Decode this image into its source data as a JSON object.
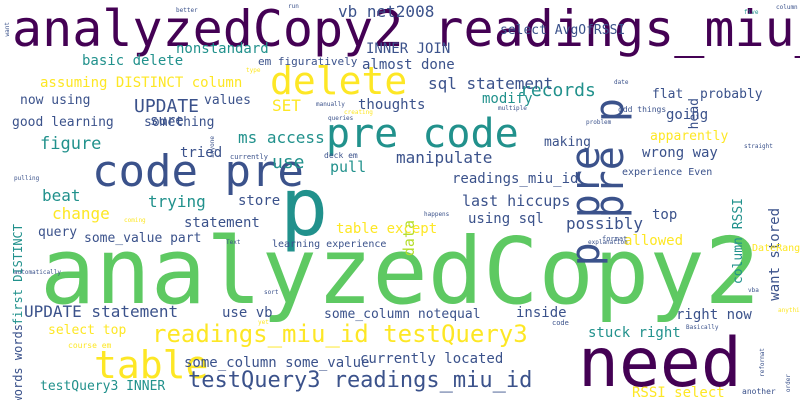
{
  "palette": {
    "dark_purple": "#440154",
    "indigo": "#3b528b",
    "teal": "#21918c",
    "green": "#5ec962",
    "yellow": "#fde725",
    "lime": "#b5de2b"
  },
  "words": [
    {
      "text": "analyzedCopy2 readings_miu_id",
      "color": "#440154"
    },
    {
      "text": "analyzedCopy2",
      "color": "#5ec962"
    },
    {
      "text": "need",
      "color": "#440154"
    },
    {
      "text": "p",
      "color": "#21918c"
    },
    {
      "text": "code pre",
      "color": "#3b528b"
    },
    {
      "text": "pre code",
      "color": "#21918c"
    },
    {
      "text": "pre p",
      "color": "#3b528b"
    },
    {
      "text": "delete",
      "color": "#fde725"
    },
    {
      "text": "table",
      "color": "#fde725"
    },
    {
      "text": "readings_miu_id testQuery3",
      "color": "#fde725"
    },
    {
      "text": "testQuery3 readings_miu_id",
      "color": "#3b528b"
    },
    {
      "text": "p pre",
      "color": "#3b528b"
    },
    {
      "text": "records",
      "color": "#21918c"
    },
    {
      "text": "sql statement",
      "color": "#3b528b"
    },
    {
      "text": "UPDATE",
      "color": "#3b528b"
    },
    {
      "text": "UPDATE statement",
      "color": "#3b528b"
    },
    {
      "text": "figure",
      "color": "#21918c"
    },
    {
      "text": "ms access",
      "color": "#21918c"
    },
    {
      "text": "manipulate",
      "color": "#3b528b"
    },
    {
      "text": "readings_miu_id",
      "color": "#3b528b"
    },
    {
      "text": "trying",
      "color": "#21918c"
    },
    {
      "text": "beat",
      "color": "#21918c"
    },
    {
      "text": "store",
      "color": "#3b528b"
    },
    {
      "text": "table except",
      "color": "#fde725"
    },
    {
      "text": "wrong way",
      "color": "#3b528b"
    },
    {
      "text": "use",
      "color": "#21918c"
    },
    {
      "text": "pull",
      "color": "#21918c"
    },
    {
      "text": "data",
      "color": "#b5de2b"
    },
    {
      "text": "last hiccups",
      "color": "#3b528b"
    },
    {
      "text": "using sql",
      "color": "#3b528b"
    },
    {
      "text": "possibly",
      "color": "#3b528b"
    },
    {
      "text": "top",
      "color": "#3b528b"
    },
    {
      "text": "change",
      "color": "#fde725"
    },
    {
      "text": "sure",
      "color": "#3b528b"
    },
    {
      "text": "basic delete",
      "color": "#21918c"
    },
    {
      "text": "nonstandard",
      "color": "#21918c"
    },
    {
      "text": "INNER JOIN",
      "color": "#3b528b"
    },
    {
      "text": "select AvgOfRSSI",
      "color": "#3b528b"
    },
    {
      "text": "vb net2008",
      "color": "#3b528b"
    },
    {
      "text": "em figuratively",
      "color": "#3b528b"
    },
    {
      "text": "almost done",
      "color": "#3b528b"
    },
    {
      "text": "assuming DISTINCT column",
      "color": "#fde725"
    },
    {
      "text": "now using",
      "color": "#3b528b"
    },
    {
      "text": "values",
      "color": "#3b528b"
    },
    {
      "text": "SET",
      "color": "#fde725"
    },
    {
      "text": "thoughts",
      "color": "#3b528b"
    },
    {
      "text": "modify",
      "color": "#21918c"
    },
    {
      "text": "good learning",
      "color": "#3b528b"
    },
    {
      "text": "something",
      "color": "#3b528b"
    },
    {
      "text": "making",
      "color": "#3b528b"
    },
    {
      "text": "apparently",
      "color": "#fde725"
    },
    {
      "text": "going",
      "color": "#3b528b"
    },
    {
      "text": "probably",
      "color": "#3b528b"
    },
    {
      "text": "flat",
      "color": "#3b528b"
    },
    {
      "text": "head",
      "color": "#3b528b"
    },
    {
      "text": "tried",
      "color": "#3b528b"
    },
    {
      "text": "statement",
      "color": "#3b528b"
    },
    {
      "text": "query",
      "color": "#3b528b"
    },
    {
      "text": "some_value part",
      "color": "#3b528b"
    },
    {
      "text": "allowed",
      "color": "#fde725"
    },
    {
      "text": "select top",
      "color": "#fde725"
    },
    {
      "text": "use vb",
      "color": "#3b528b"
    },
    {
      "text": "some_column notequal",
      "color": "#3b528b"
    },
    {
      "text": "inside",
      "color": "#3b528b"
    },
    {
      "text": "right now",
      "color": "#3b528b"
    },
    {
      "text": "stuck right",
      "color": "#21918c"
    },
    {
      "text": "some_column some_value",
      "color": "#3b528b"
    },
    {
      "text": "currently located",
      "color": "#3b528b"
    },
    {
      "text": "testQuery3 INNER",
      "color": "#21918c"
    },
    {
      "text": "RSSI select",
      "color": "#fde725"
    },
    {
      "text": "first DISTINCT",
      "color": "#21918c"
    },
    {
      "text": "words words",
      "color": "#3b528b"
    },
    {
      "text": "column RSSI",
      "color": "#21918c"
    },
    {
      "text": "want stored",
      "color": "#3b528b"
    },
    {
      "text": "experience Even",
      "color": "#3b528b"
    },
    {
      "text": "learning experience",
      "color": "#3b528b"
    },
    {
      "text": "DateRange",
      "color": "#fde725"
    },
    {
      "text": "deck em",
      "color": "#3b528b"
    },
    {
      "text": "currently",
      "color": "#3b528b"
    },
    {
      "text": "course em",
      "color": "#fde725"
    },
    {
      "text": "code",
      "color": "#3b528b"
    },
    {
      "text": "another",
      "color": "#3b528b"
    },
    {
      "text": "odd things",
      "color": "#3b528b"
    },
    {
      "text": "format",
      "color": "#3b528b"
    },
    {
      "text": "Text",
      "color": "#3b528b"
    },
    {
      "text": "vba",
      "color": "#3b528b"
    },
    {
      "text": "explanation",
      "color": "#3b528b"
    },
    {
      "text": "happens",
      "color": "#3b528b"
    },
    {
      "text": "pulling",
      "color": "#3b528b"
    },
    {
      "text": "anyone",
      "color": "#3b528b"
    },
    {
      "text": "problem",
      "color": "#3b528b"
    },
    {
      "text": "Basically",
      "color": "#3b528b"
    },
    {
      "text": "anything",
      "color": "#fde725"
    },
    {
      "text": "sort",
      "color": "#3b528b"
    },
    {
      "text": "manually",
      "color": "#3b528b"
    },
    {
      "text": "queries",
      "color": "#3b528b"
    },
    {
      "text": "column",
      "color": "#3b528b"
    },
    {
      "text": "date",
      "color": "#3b528b"
    },
    {
      "text": "run",
      "color": "#3b528b"
    },
    {
      "text": "better",
      "color": "#3b528b"
    },
    {
      "text": "want",
      "color": "#3b528b"
    },
    {
      "text": "creating",
      "color": "#fde725"
    },
    {
      "text": "multiple",
      "color": "#3b528b"
    },
    {
      "text": "coming",
      "color": "#fde725"
    },
    {
      "text": "automatically",
      "color": "#3b528b"
    },
    {
      "text": "reformat",
      "color": "#3b528b"
    },
    {
      "text": "straight",
      "color": "#3b528b"
    },
    {
      "text": "order",
      "color": "#3b528b"
    },
    {
      "text": "type",
      "color": "#fde725"
    },
    {
      "text": "yet",
      "color": "#fde725"
    },
    {
      "text": "five",
      "color": "#21918c"
    }
  ]
}
